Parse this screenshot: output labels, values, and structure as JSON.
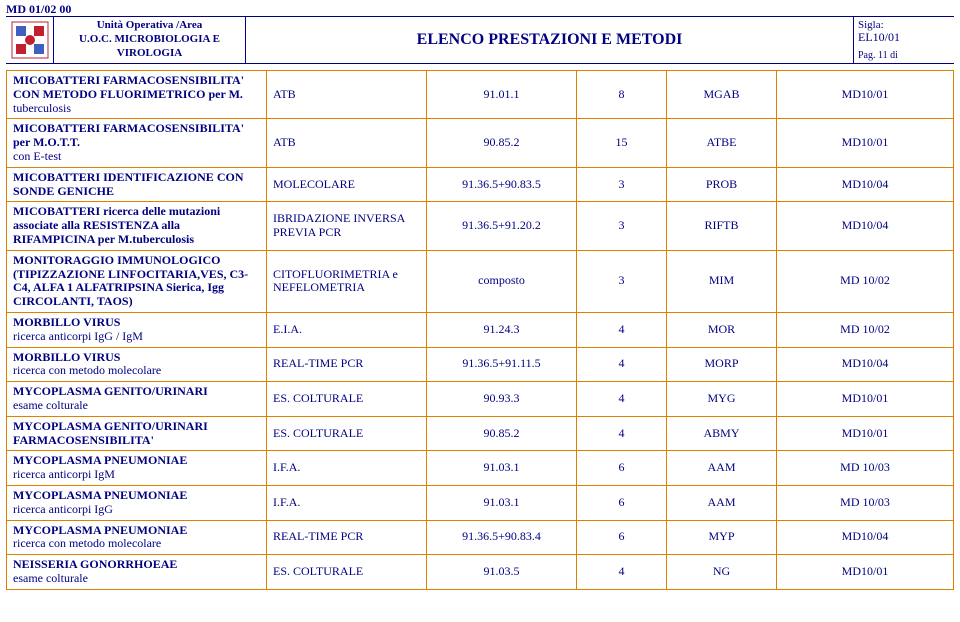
{
  "doc_id": "MD 01/02 00",
  "header": {
    "unit_line1": "Unità Operativa /Area",
    "unit_line2": "U.O.C. MICROBIOLOGIA E VIROLOGIA",
    "title": "ELENCO PRESTAZIONI E METODI",
    "sigla_label": "Sigla:",
    "sigla_value": "EL10/01",
    "pag": "Pag. 11 di"
  },
  "colors": {
    "text": "#000080",
    "border": "#e08000",
    "logo_accent": "#c02030",
    "logo_accent2": "#4060c0"
  },
  "rows": [
    {
      "name": "MICOBATTERI FARMACOSENSIBILITA' CON METODO FLUORIMETRICO per M.",
      "sub": "tuberculosis",
      "method": "ATB",
      "code": "91.01.1",
      "days": "8",
      "abbr": "MGAB",
      "ref": "MD10/01"
    },
    {
      "name": "MICOBATTERI FARMACOSENSIBILITA' per M.O.T.T.",
      "sub": "con E-test",
      "method": "ATB",
      "code": "90.85.2",
      "days": "15",
      "abbr": "ATBE",
      "ref": "MD10/01"
    },
    {
      "name": "MICOBATTERI IDENTIFICAZIONE CON SONDE GENICHE",
      "sub": "",
      "method": "MOLECOLARE",
      "code": "91.36.5+90.83.5",
      "days": "3",
      "abbr": "PROB",
      "ref": "MD10/04"
    },
    {
      "name": "MICOBATTERI ricerca delle mutazioni associate alla RESISTENZA alla RIFAMPICINA per M.tuberculosis",
      "sub": "",
      "method": "IBRIDAZIONE INVERSA PREVIA PCR",
      "code": "91.36.5+91.20.2",
      "days": "3",
      "abbr": "RIFTB",
      "ref": "MD10/04"
    },
    {
      "name": "MONITORAGGIO IMMUNOLOGICO (TIPIZZAZIONE LINFOCITARIA,VES, C3-C4, ALFA 1 ALFATRIPSINA Sierica, Igg CIRCOLANTI, TAOS)",
      "sub": "",
      "method": "CITOFLUORIMETRIA e NEFELOMETRIA",
      "code": "composto",
      "days": "3",
      "abbr": "MIM",
      "ref": "MD 10/02"
    },
    {
      "name": "MORBILLO VIRUS",
      "sub": "ricerca anticorpi IgG / IgM",
      "method": "E.I.A.",
      "code": "91.24.3",
      "days": "4",
      "abbr": "MOR",
      "ref": "MD 10/02"
    },
    {
      "name": "MORBILLO VIRUS",
      "sub": "ricerca con metodo molecolare",
      "method": "REAL-TIME PCR",
      "code": "91.36.5+91.11.5",
      "days": "4",
      "abbr": "MORP",
      "ref": "MD10/04"
    },
    {
      "name": "MYCOPLASMA GENITO/URINARI",
      "sub": "esame colturale",
      "method": "ES. COLTURALE",
      "code": "90.93.3",
      "days": "4",
      "abbr": "MYG",
      "ref": "MD10/01"
    },
    {
      "name": "MYCOPLASMA GENITO/URINARI FARMACOSENSIBILITA'",
      "sub": "",
      "method": "ES. COLTURALE",
      "code": "90.85.2",
      "days": "4",
      "abbr": "ABMY",
      "ref": "MD10/01"
    },
    {
      "name": "MYCOPLASMA PNEUMONIAE",
      "sub": "ricerca anticorpi IgM",
      "method": "I.F.A.",
      "code": "91.03.1",
      "days": "6",
      "abbr": "AAM",
      "ref": "MD 10/03"
    },
    {
      "name": "MYCOPLASMA PNEUMONIAE",
      "sub": "ricerca anticorpi IgG",
      "method": "I.F.A.",
      "code": "91.03.1",
      "days": "6",
      "abbr": "AAM",
      "ref": "MD 10/03"
    },
    {
      "name": "MYCOPLASMA PNEUMONIAE",
      "sub": "ricerca con metodo molecolare",
      "method": "REAL-TIME PCR",
      "code": "91.36.5+90.83.4",
      "days": "6",
      "abbr": "MYP",
      "ref": "MD10/04"
    },
    {
      "name": "NEISSERIA GONORRHOEAE",
      "sub": "esame colturale",
      "method": "ES. COLTURALE",
      "code": "91.03.5",
      "days": "4",
      "abbr": "NG",
      "ref": "MD10/01"
    }
  ]
}
